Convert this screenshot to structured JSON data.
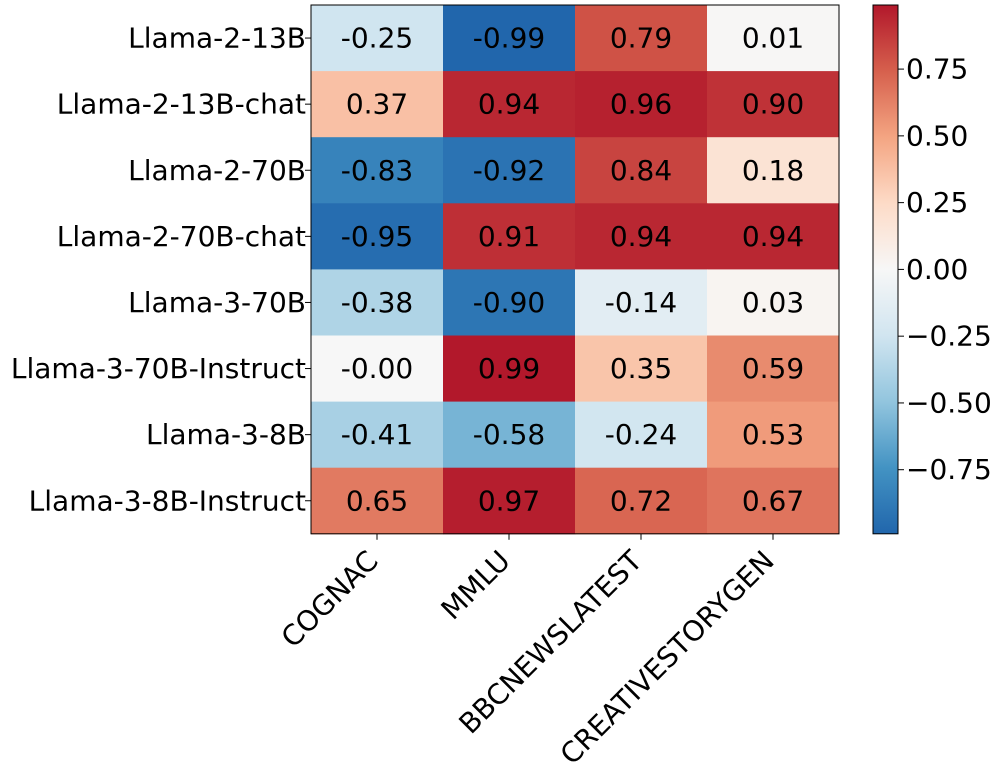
{
  "chart_data": {
    "type": "heatmap",
    "rows": [
      "Llama-2-13B",
      "Llama-2-13B-chat",
      "Llama-2-70B",
      "Llama-2-70B-chat",
      "Llama-3-70B",
      "Llama-3-70B-Instruct",
      "Llama-3-8B",
      "Llama-3-8B-Instruct"
    ],
    "columns": [
      "COGNAC",
      "MMLU",
      "BBCNEWSLATEST",
      "CREATIVESTORYGEN"
    ],
    "values": [
      [
        -0.25,
        -0.99,
        0.79,
        0.01
      ],
      [
        0.37,
        0.94,
        0.96,
        0.9
      ],
      [
        -0.83,
        -0.92,
        0.84,
        0.18
      ],
      [
        -0.95,
        0.91,
        0.94,
        0.94
      ],
      [
        -0.38,
        -0.9,
        -0.14,
        0.03
      ],
      [
        -0.0,
        0.99,
        0.35,
        0.59
      ],
      [
        -0.41,
        -0.58,
        -0.24,
        0.53
      ],
      [
        0.65,
        0.97,
        0.72,
        0.67
      ]
    ],
    "cell_labels": [
      [
        "-0.25",
        "-0.99",
        "0.79",
        "0.01"
      ],
      [
        "0.37",
        "0.94",
        "0.96",
        "0.90"
      ],
      [
        "-0.83",
        "-0.92",
        "0.84",
        "0.18"
      ],
      [
        "-0.95",
        "0.91",
        "0.94",
        "0.94"
      ],
      [
        "-0.38",
        "-0.90",
        "-0.14",
        "0.03"
      ],
      [
        "-0.00",
        "0.99",
        "0.35",
        "0.59"
      ],
      [
        "-0.41",
        "-0.58",
        "-0.24",
        "0.53"
      ],
      [
        "0.65",
        "0.97",
        "0.72",
        "0.67"
      ]
    ],
    "colorbar": {
      "range": [
        -0.99,
        0.99
      ],
      "ticks": [
        0.75,
        0.5,
        0.25,
        0.0,
        -0.25,
        -0.5,
        -0.75
      ],
      "tick_labels": [
        "0.75",
        "0.50",
        "0.25",
        "0.00",
        "−0.25",
        "−0.50",
        "−0.75"
      ]
    },
    "colormap": {
      "negative": "#2166ac",
      "zero": "#f7f7f7",
      "positive": "#b2182b",
      "stops": [
        "#2166ac",
        "#4393c3",
        "#92c5de",
        "#d1e5f0",
        "#f7f7f7",
        "#fddbc7",
        "#f4a582",
        "#d6604d",
        "#b2182b"
      ]
    },
    "title": "",
    "xlabel": "",
    "ylabel": ""
  }
}
